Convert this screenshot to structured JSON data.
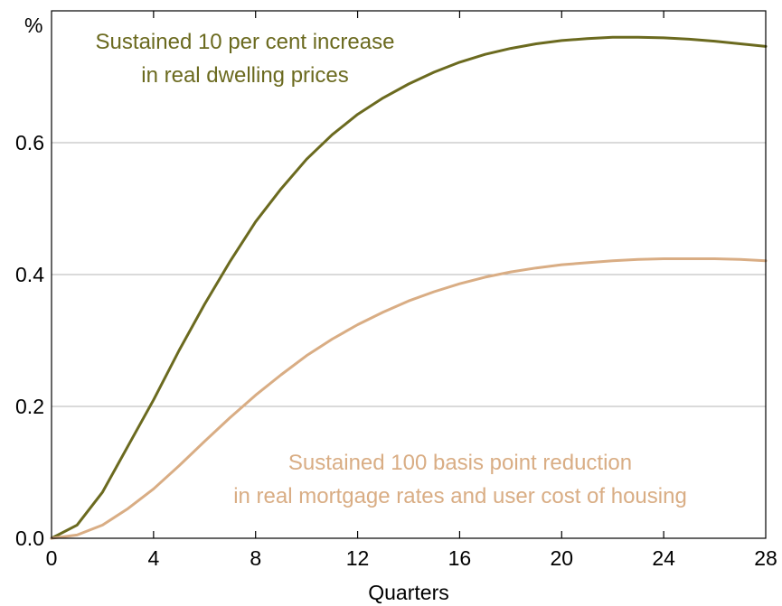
{
  "chart_data": {
    "type": "line",
    "title": "",
    "xlabel": "Quarters",
    "ylabel": "%",
    "xlim": [
      0,
      28
    ],
    "ylim": [
      0,
      0.8
    ],
    "x_ticks": [
      0,
      4,
      8,
      12,
      16,
      20,
      24,
      28
    ],
    "y_ticks": [
      0.0,
      0.2,
      0.4,
      0.6
    ],
    "y_tick_labels": [
      "0.0",
      "0.2",
      "0.4",
      "0.6"
    ],
    "x_tick_labels": [
      "0",
      "4",
      "8",
      "12",
      "16",
      "20",
      "24",
      "28"
    ],
    "grid": "horizontal",
    "legend": "none",
    "series": [
      {
        "label_lines": [
          "Sustained 10 per cent increase",
          "in real dwelling prices"
        ],
        "color": "#6b6a1f",
        "x": [
          0,
          1,
          2,
          3,
          4,
          5,
          6,
          7,
          8,
          9,
          10,
          11,
          12,
          13,
          14,
          15,
          16,
          17,
          18,
          19,
          20,
          21,
          22,
          23,
          24,
          25,
          26,
          27,
          28
        ],
        "values": [
          0.0,
          0.02,
          0.07,
          0.14,
          0.21,
          0.285,
          0.355,
          0.42,
          0.48,
          0.53,
          0.575,
          0.612,
          0.643,
          0.668,
          0.689,
          0.707,
          0.722,
          0.734,
          0.743,
          0.75,
          0.755,
          0.758,
          0.76,
          0.76,
          0.759,
          0.757,
          0.754,
          0.75,
          0.746
        ]
      },
      {
        "label_lines": [
          "Sustained 100 basis point reduction",
          "in real mortgage rates and user cost of housing"
        ],
        "color": "#d9ad84",
        "x": [
          0,
          1,
          2,
          3,
          4,
          5,
          6,
          7,
          8,
          9,
          10,
          11,
          12,
          13,
          14,
          15,
          16,
          17,
          18,
          19,
          20,
          21,
          22,
          23,
          24,
          25,
          26,
          27,
          28
        ],
        "values": [
          0.0,
          0.005,
          0.02,
          0.045,
          0.075,
          0.11,
          0.147,
          0.183,
          0.217,
          0.248,
          0.277,
          0.302,
          0.324,
          0.343,
          0.36,
          0.374,
          0.386,
          0.396,
          0.404,
          0.41,
          0.415,
          0.418,
          0.421,
          0.423,
          0.424,
          0.424,
          0.424,
          0.423,
          0.421
        ]
      }
    ]
  }
}
